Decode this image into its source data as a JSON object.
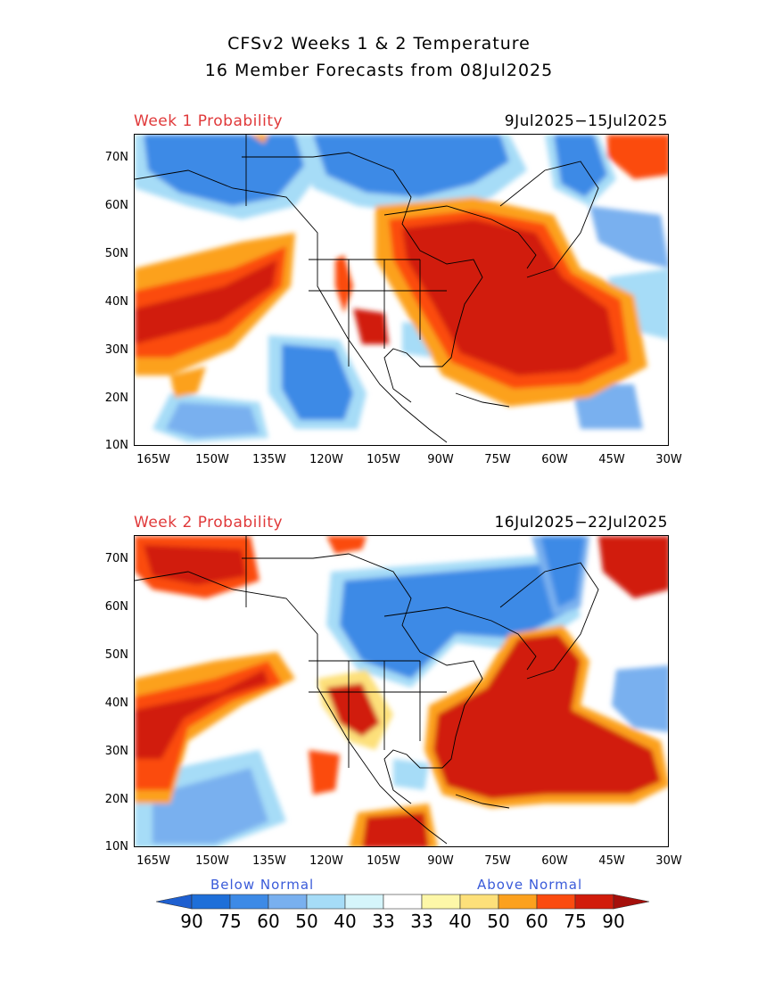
{
  "title_line1": "CFSv2 Weeks 1 & 2 Temperature",
  "title_line2": "16 Member Forecasts from 08Jul2025",
  "panels": [
    {
      "label": "Week 1 Probability",
      "dates": "9Jul2025−15Jul2025"
    },
    {
      "label": "Week 2 Probability",
      "dates": "16Jul2025−22Jul2025"
    }
  ],
  "lat_labels": [
    "70N",
    "60N",
    "50N",
    "40N",
    "30N",
    "20N",
    "10N"
  ],
  "lon_labels": [
    "165W",
    "150W",
    "135W",
    "120W",
    "105W",
    "90W",
    "75W",
    "60W",
    "45W",
    "30W"
  ],
  "legend": {
    "below_label": "Below Normal",
    "above_label": "Above Normal",
    "values": [
      "90",
      "75",
      "60",
      "50",
      "40",
      "33",
      "33",
      "40",
      "50",
      "60",
      "75",
      "90"
    ],
    "colors_below": [
      "#1e6fd9",
      "#3d8ae6",
      "#79b0ef",
      "#a6dcf7",
      "#d5f5fb"
    ],
    "colors_above": [
      "#fdf7a8",
      "#fde07a",
      "#fca11e",
      "#fb4b0f",
      "#d11c0b"
    ],
    "color_neutral": "#ffffff",
    "arrow_below": "#1e5fd0",
    "arrow_above": "#a50f0b"
  }
}
